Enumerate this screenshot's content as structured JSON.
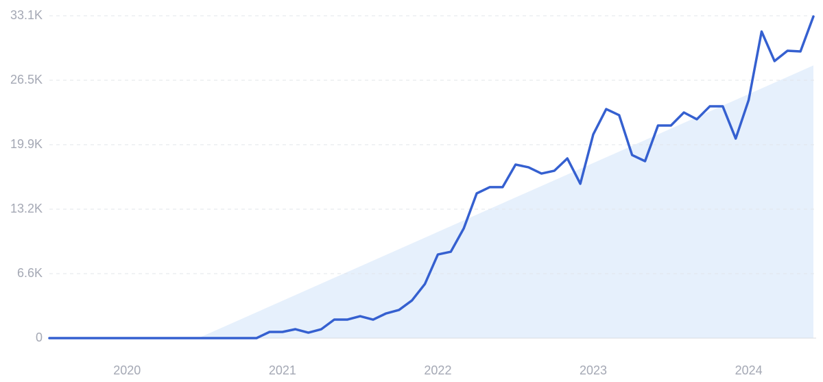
{
  "chart_data": {
    "type": "line",
    "categories": [
      null,
      null,
      null,
      null,
      null,
      null,
      "2020",
      null,
      null,
      null,
      null,
      null,
      null,
      null,
      null,
      null,
      null,
      null,
      "2021",
      null,
      null,
      null,
      null,
      null,
      null,
      null,
      null,
      null,
      null,
      null,
      "2022",
      null,
      null,
      null,
      null,
      null,
      null,
      null,
      null,
      null,
      null,
      null,
      "2023",
      null,
      null,
      null,
      null,
      null,
      null,
      null,
      null,
      null,
      null,
      null,
      "2024",
      null,
      null,
      null,
      null,
      null
    ],
    "series": [
      {
        "color": "#3560d0",
        "values": [
          0,
          0,
          0,
          0,
          0,
          0,
          0,
          0,
          0,
          0,
          0,
          0,
          0,
          0,
          0,
          0,
          0,
          634,
          634,
          915,
          563,
          915,
          1900,
          1900,
          2250,
          1900,
          2535,
          2890,
          3870,
          5560,
          8590,
          8870,
          11270,
          14860,
          15500,
          15500,
          17820,
          17540,
          16900,
          17190,
          18450,
          15850,
          20920,
          23520,
          22890,
          18800,
          18170,
          21830,
          21830,
          23170,
          22470,
          23800,
          23800,
          20490,
          24440,
          31480,
          28450,
          29510,
          29440,
          33030
        ]
      }
    ],
    "trend": {
      "color": "#e6f0fc",
      "x": [
        11.5,
        59
      ],
      "values": [
        0,
        28000
      ]
    },
    "ylim": [
      0,
      33100
    ],
    "yticks": [
      0,
      {
        "value": 6620,
        "label": "6.6K"
      },
      {
        "value": 13240,
        "label": "13.2K"
      },
      {
        "value": 19860,
        "label": "19.9K"
      },
      {
        "value": 26480,
        "label": "26.5K"
      },
      {
        "value": 33100,
        "label": "33.1K"
      }
    ],
    "grid": true
  }
}
